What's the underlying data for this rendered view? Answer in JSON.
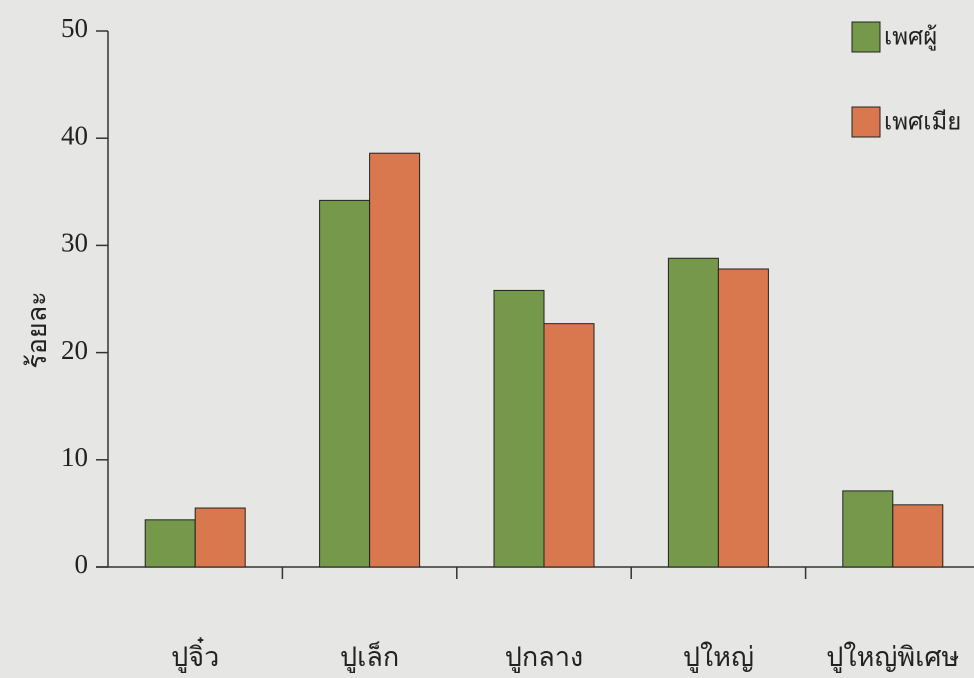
{
  "chart_data": {
    "type": "bar",
    "y_label": "ร้อยละ",
    "categories": [
      "ปูจิ๋ว",
      "ปูเล็ก",
      "ปูกลาง",
      "ปูใหญ่",
      "ปูใหญ่พิเศษ"
    ],
    "series": [
      {
        "name": "เพศผู้",
        "color": "#76984a",
        "values": [
          4.4,
          34.2,
          25.8,
          28.8,
          7.1
        ]
      },
      {
        "name": "เพศเมีย",
        "color": "#d9774f",
        "values": [
          5.5,
          38.6,
          22.7,
          27.8,
          5.8
        ]
      }
    ],
    "ylim": [
      0,
      50
    ],
    "yticks": [
      0,
      10,
      20,
      30,
      40,
      50
    ],
    "legend": "top-right"
  }
}
